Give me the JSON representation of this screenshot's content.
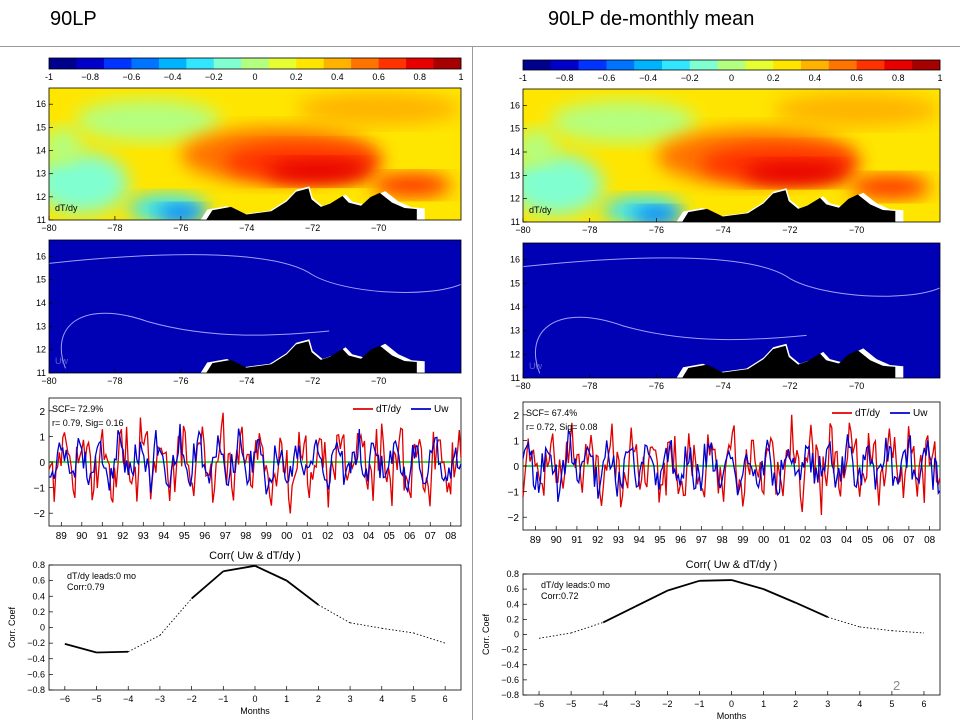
{
  "slide": {
    "left_title": "90LP",
    "right_title": "90LP   de-monthly mean",
    "page_number": "2"
  },
  "colorbar": {
    "ticks": [
      "-1",
      "−0.8",
      "−0.6",
      "−0.4",
      "−0.2",
      "0",
      "0.2",
      "0.4",
      "0.6",
      "0.8",
      "1"
    ],
    "colors": [
      "#00008f",
      "#0000c8",
      "#0033ff",
      "#0073ff",
      "#00b3ff",
      "#33e6ff",
      "#80ffd0",
      "#b3ff80",
      "#e6ff33",
      "#ffe600",
      "#ffb300",
      "#ff7300",
      "#ff3300",
      "#e60000",
      "#a60000"
    ]
  },
  "maps": {
    "x_ticks": [
      "−80",
      "−78",
      "−76",
      "−74",
      "−72",
      "−70"
    ],
    "y_ticks": [
      "16",
      "15",
      "14",
      "13",
      "12",
      "11"
    ],
    "top_label": "dT/dy",
    "bottom_label": "Uw",
    "fill_colors": {
      "ocean_blue": "#0000b4",
      "land": "#000000"
    }
  },
  "timeseries_left": {
    "scf": "SCF= 72.9%",
    "stats": "r= 0.79, Sig= 0.16",
    "y_ticks": [
      "2",
      "1",
      "0",
      "−1",
      "−2"
    ],
    "x_ticks": [
      "89",
      "90",
      "91",
      "92",
      "93",
      "94",
      "95",
      "96",
      "97",
      "98",
      "99",
      "00",
      "01",
      "02",
      "03",
      "04",
      "05",
      "06",
      "07",
      "08"
    ]
  },
  "timeseries_right": {
    "scf": "SCF= 67.4%",
    "stats": "r= 0.72, Sig= 0.08",
    "y_ticks": [
      "2",
      "1",
      "0",
      "−1",
      "−2"
    ],
    "x_ticks": [
      "89",
      "90",
      "91",
      "92",
      "93",
      "94",
      "95",
      "96",
      "97",
      "98",
      "99",
      "00",
      "01",
      "02",
      "03",
      "04",
      "05",
      "06",
      "07",
      "08"
    ]
  },
  "legend": {
    "series_a": "dT/dy",
    "series_b": "Uw",
    "color_a": "#e00000",
    "color_b": "#0000d0",
    "zero_line": "#00cc00"
  },
  "corr_left": {
    "title": "Corr( Uw & dT/dy )",
    "ylabel": "Corr. Coef",
    "xlabel": "Months",
    "lead_text": "dT/dy leads:0 mo",
    "corr_text": "Corr:0.79",
    "x_ticks": [
      "−6",
      "−5",
      "−4",
      "−3",
      "−2",
      "−1",
      "0",
      "1",
      "2",
      "3",
      "4",
      "5",
      "6"
    ],
    "y_ticks": [
      "0.8",
      "0.6",
      "0.4",
      "0.2",
      "0",
      "−0.2",
      "−0.4",
      "−0.6",
      "−0.8"
    ]
  },
  "corr_right": {
    "title": "Corr( Uw & dT/dy )",
    "ylabel": "Corr. Coef",
    "xlabel": "Months",
    "lead_text": "dT/dy leads:0 mo",
    "corr_text": "Corr:0.72",
    "x_ticks": [
      "−6",
      "−5",
      "−4",
      "−3",
      "−2",
      "−1",
      "0",
      "1",
      "2",
      "3",
      "4",
      "5",
      "6"
    ],
    "y_ticks": [
      "0.8",
      "0.6",
      "0.4",
      "0.2",
      "0",
      "−0.2",
      "−0.4",
      "−0.6",
      "−0.8"
    ]
  },
  "chart_data": [
    {
      "type": "line",
      "title": "Corr( Uw & dT/dy )",
      "xlabel": "Months",
      "ylabel": "Corr. Coef",
      "xlim": [
        -6.5,
        6.5
      ],
      "ylim": [
        -0.8,
        0.8
      ],
      "x": [
        -6,
        -5,
        -4,
        -3,
        -2,
        -1,
        0,
        1,
        2,
        3,
        4,
        5,
        6
      ],
      "series": [
        {
          "values": [
            -0.21,
            -0.32,
            -0.31,
            -0.1,
            0.37,
            0.72,
            0.79,
            0.6,
            0.29,
            0.06,
            -0.01,
            -0.07,
            -0.2
          ]
        }
      ],
      "significant": [
        true,
        true,
        true,
        false,
        true,
        true,
        true,
        true,
        true,
        false,
        false,
        false,
        false
      ],
      "annotations": [
        "dT/dy leads:0 mo",
        "Corr:0.79"
      ]
    },
    {
      "type": "line",
      "title": "Corr( Uw & dT/dy )",
      "xlabel": "Months",
      "ylabel": "Corr. Coef",
      "xlim": [
        -6.5,
        6.5
      ],
      "ylim": [
        -0.8,
        0.8
      ],
      "x": [
        -6,
        -5,
        -4,
        -3,
        -2,
        -1,
        0,
        1,
        2,
        3,
        4,
        5,
        6
      ],
      "series": [
        {
          "values": [
            -0.05,
            0.02,
            0.16,
            0.37,
            0.58,
            0.71,
            0.72,
            0.6,
            0.42,
            0.23,
            0.1,
            0.05,
            0.02
          ]
        }
      ],
      "significant": [
        false,
        false,
        true,
        true,
        true,
        true,
        true,
        true,
        true,
        true,
        false,
        false,
        false
      ],
      "annotations": [
        "dT/dy leads:0 mo",
        "Corr:0.72"
      ]
    },
    {
      "type": "line",
      "legend": [
        "dT/dy",
        "Uw"
      ],
      "x_ticks": [
        "89",
        "90",
        "91",
        "92",
        "93",
        "94",
        "95",
        "96",
        "97",
        "98",
        "99",
        "00",
        "01",
        "02",
        "03",
        "04",
        "05",
        "06",
        "07",
        "08"
      ],
      "ylim": [
        -2.5,
        2.5
      ],
      "annotations": [
        "SCF= 72.9%",
        "r= 0.79, Sig= 0.16"
      ]
    },
    {
      "type": "line",
      "legend": [
        "dT/dy",
        "Uw"
      ],
      "x_ticks": [
        "89",
        "90",
        "91",
        "92",
        "93",
        "94",
        "95",
        "96",
        "97",
        "98",
        "99",
        "00",
        "01",
        "02",
        "03",
        "04",
        "05",
        "06",
        "07",
        "08"
      ],
      "ylim": [
        -2.5,
        2.5
      ],
      "annotations": [
        "SCF= 67.4%",
        "r= 0.72, Sig= 0.08"
      ]
    }
  ]
}
